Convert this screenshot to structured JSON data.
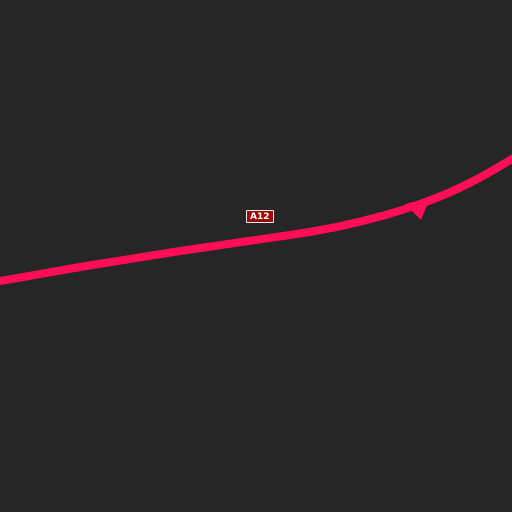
{
  "map": {
    "background_color": "#262626",
    "road": {
      "ref": "A12",
      "color": "#ff0d56",
      "shield_color": "#9c0a0a",
      "shield_text_color": "#ffffff"
    }
  }
}
